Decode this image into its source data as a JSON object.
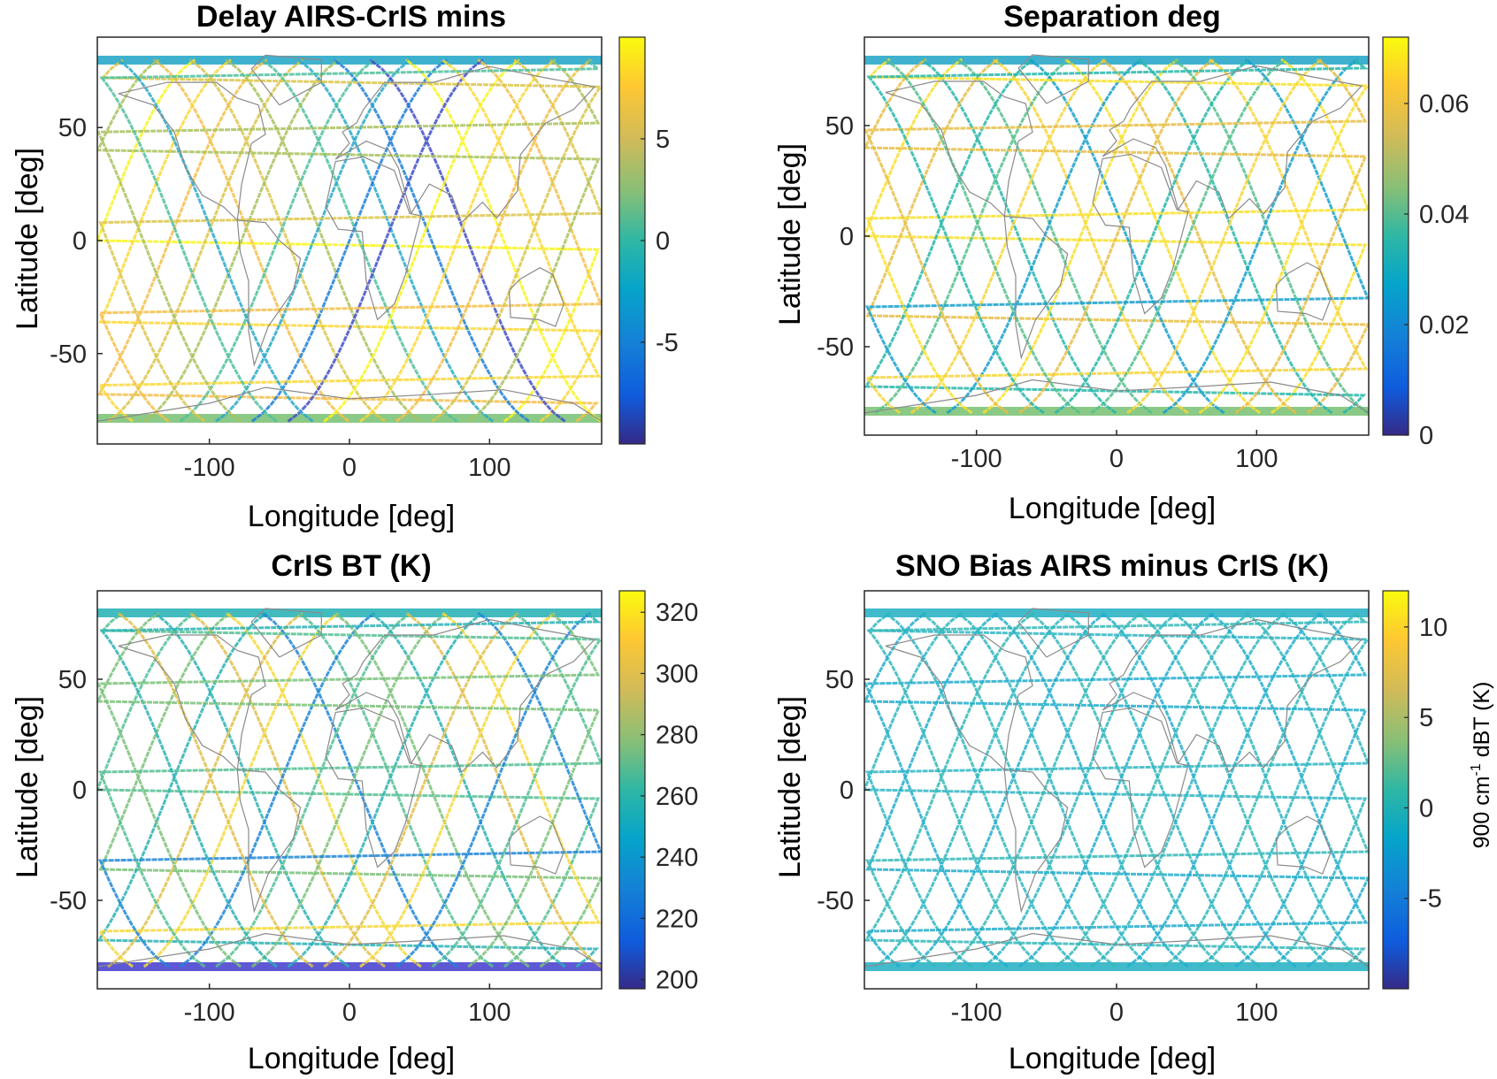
{
  "chart_data": [
    {
      "type": "heatmap",
      "title": "Delay AIRS-CrIS mins",
      "xlabel": "Longitude [deg]",
      "ylabel": "Latitude [deg]",
      "colorbar_label": "",
      "xlim": [
        -180,
        180
      ],
      "ylim": [
        -90,
        90
      ],
      "xticks": [
        -100,
        0,
        100
      ],
      "xtick_labels": [
        "-100",
        "0",
        "100"
      ],
      "yticks": [
        -50,
        0,
        50
      ],
      "ytick_labels": [
        "-50",
        "0",
        "50"
      ],
      "colorbar_range": [
        -10,
        10
      ],
      "colorbar_ticks": [
        -5,
        0,
        5
      ],
      "colorbar_tick_labels": [
        "-5",
        "0",
        "5"
      ],
      "colormap": "parula",
      "tracks": "ascending/descending orbit tracks colored near 8-10 at mid latitudes, mixed values near poles"
    },
    {
      "type": "heatmap",
      "title": "Separation deg",
      "xlabel": "Longitude [deg]",
      "ylabel": "Latitude [deg]",
      "colorbar_label": "",
      "xlim": [
        -180,
        180
      ],
      "ylim": [
        -90,
        90
      ],
      "xticks": [
        -100,
        0,
        100
      ],
      "xtick_labels": [
        "-100",
        "0",
        "100"
      ],
      "yticks": [
        -50,
        0,
        50
      ],
      "ytick_labels": [
        "-50",
        "0",
        "50"
      ],
      "colorbar_range": [
        0,
        0.072
      ],
      "colorbar_ticks": [
        0,
        0.02,
        0.04,
        0.06
      ],
      "colorbar_tick_labels": [
        "0",
        "0.02",
        "0.04",
        "0.06"
      ],
      "colormap": "parula"
    },
    {
      "type": "heatmap",
      "title": "CrIS BT (K)",
      "xlabel": "Longitude [deg]",
      "ylabel": "Latitude [deg]",
      "colorbar_label": "",
      "xlim": [
        -180,
        180
      ],
      "ylim": [
        -90,
        90
      ],
      "xticks": [
        -100,
        0,
        100
      ],
      "xtick_labels": [
        "-100",
        "0",
        "100"
      ],
      "yticks": [
        -50,
        0,
        50
      ],
      "ytick_labels": [
        "-50",
        "0",
        "50"
      ],
      "colorbar_range": [
        197,
        327
      ],
      "colorbar_ticks": [
        200,
        220,
        240,
        260,
        280,
        300,
        320
      ],
      "colorbar_tick_labels": [
        "200",
        "220",
        "240",
        "260",
        "280",
        "300",
        "320"
      ],
      "colormap": "parula"
    },
    {
      "type": "heatmap",
      "title": "SNO Bias AIRS minus CrIS (K)",
      "xlabel": "Longitude [deg]",
      "ylabel": "Latitude [deg]",
      "colorbar_label_prefix": "900 cm",
      "colorbar_label_sup": "-1",
      "colorbar_label_suffix": " dBT (K)",
      "xlim": [
        -180,
        180
      ],
      "ylim": [
        -90,
        90
      ],
      "xticks": [
        -100,
        0,
        100
      ],
      "xtick_labels": [
        "-100",
        "0",
        "100"
      ],
      "yticks": [
        -50,
        0,
        50
      ],
      "ytick_labels": [
        "-50",
        "0",
        "50"
      ],
      "colorbar_range": [
        -10,
        12
      ],
      "colorbar_ticks": [
        -5,
        0,
        5,
        10
      ],
      "colorbar_tick_labels": [
        "-5",
        "0",
        "5",
        "10"
      ],
      "colormap": "parula"
    }
  ]
}
